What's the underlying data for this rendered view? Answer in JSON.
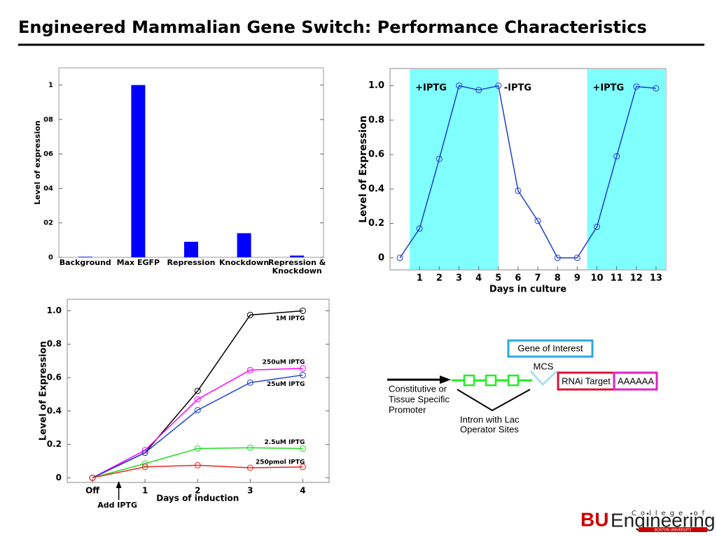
{
  "title": "Engineered Mammalian Gene Switch: Performance Characteristics",
  "chart_data": [
    {
      "type": "bar",
      "ylabel": "Level of expression",
      "categories": [
        "Background",
        "Max EGFP",
        "Repression",
        "Knockdown",
        "Repression & Knockdown"
      ],
      "values": [
        0.003,
        1.0,
        0.09,
        0.14,
        0.01
      ],
      "color": "#0000ff",
      "ylim": [
        0,
        1.1
      ],
      "yticks": [
        0,
        {
          "value": 0.2,
          "label": "02"
        },
        {
          "value": 0.4,
          "label": "04"
        },
        {
          "value": 0.6,
          "label": "06"
        },
        {
          "value": 0.8,
          "label": "08"
        },
        1
      ]
    },
    {
      "type": "line",
      "xlabel": "Days in culture",
      "ylabel": "Level of Expression",
      "x": [
        0,
        1,
        2,
        3,
        4,
        5,
        6,
        7,
        8,
        9,
        10,
        11,
        12,
        13
      ],
      "values": [
        0,
        0.17,
        0.575,
        1.0,
        0.975,
        1.0,
        0.39,
        0.215,
        0,
        0,
        0.18,
        0.59,
        0.995,
        0.985
      ],
      "color": "#1f3fd0",
      "xlim": [
        -0.5,
        13.5
      ],
      "ylim": [
        -0.07,
        1.1
      ],
      "xticks": [
        1,
        2,
        3,
        4,
        5,
        6,
        7,
        8,
        9,
        10,
        11,
        12,
        13
      ],
      "yticks": [
        0,
        0.2,
        0.4,
        0.6,
        0.8,
        {
          "value": 1,
          "label": "1.0"
        }
      ],
      "shaded": [
        [
          0.5,
          5
        ],
        [
          9.5,
          13.5
        ]
      ],
      "shade_color": "#80ffff",
      "annotations": [
        "+IPTG",
        "-IPTG",
        "+IPTG"
      ]
    },
    {
      "type": "line",
      "xlabel": "Days of induction",
      "ylabel": "Level of Expression",
      "categories": [
        "Off",
        "1",
        "2",
        "3",
        "4"
      ],
      "series": [
        {
          "name": "1M IPTG",
          "color": "#000000",
          "values": [
            0,
            0.15,
            0.52,
            0.975,
            1.0
          ]
        },
        {
          "name": "250uM IPTG",
          "color": "#ff00ff",
          "values": [
            0,
            0.165,
            0.47,
            0.645,
            0.655
          ]
        },
        {
          "name": "25uM IPTG",
          "color": "#1f3fd0",
          "values": [
            0,
            0.15,
            0.405,
            0.57,
            0.615
          ]
        },
        {
          "name": "2.5uM IPTG",
          "color": "#22dd22",
          "values": [
            0,
            0.085,
            0.175,
            0.18,
            0.175
          ]
        },
        {
          "name": "250pmol IPTG",
          "color": "#ee2222",
          "values": [
            0,
            0.065,
            0.075,
            0.06,
            0.065
          ]
        }
      ],
      "ylim": [
        -0.028,
        1.069
      ],
      "yticks": [
        0,
        0.2,
        0.4,
        0.6,
        0.8,
        {
          "value": 1,
          "label": "1.0"
        }
      ],
      "annotation": "Add IPTG"
    }
  ],
  "diagram": {
    "gene": "Gene of Interest",
    "mcs": "MCS",
    "rnai": "RNAi Target",
    "polya": "AAAAAA",
    "promoter": [
      "Constitutive or",
      "Tissue Specific",
      "Promoter"
    ],
    "intron": [
      "Intron with Lac",
      "Operator Sites"
    ]
  },
  "logo": {
    "bu": "BU",
    "engineering": "Engineering",
    "college": "College of",
    "university": "BOSTON UNIVERSITY"
  }
}
